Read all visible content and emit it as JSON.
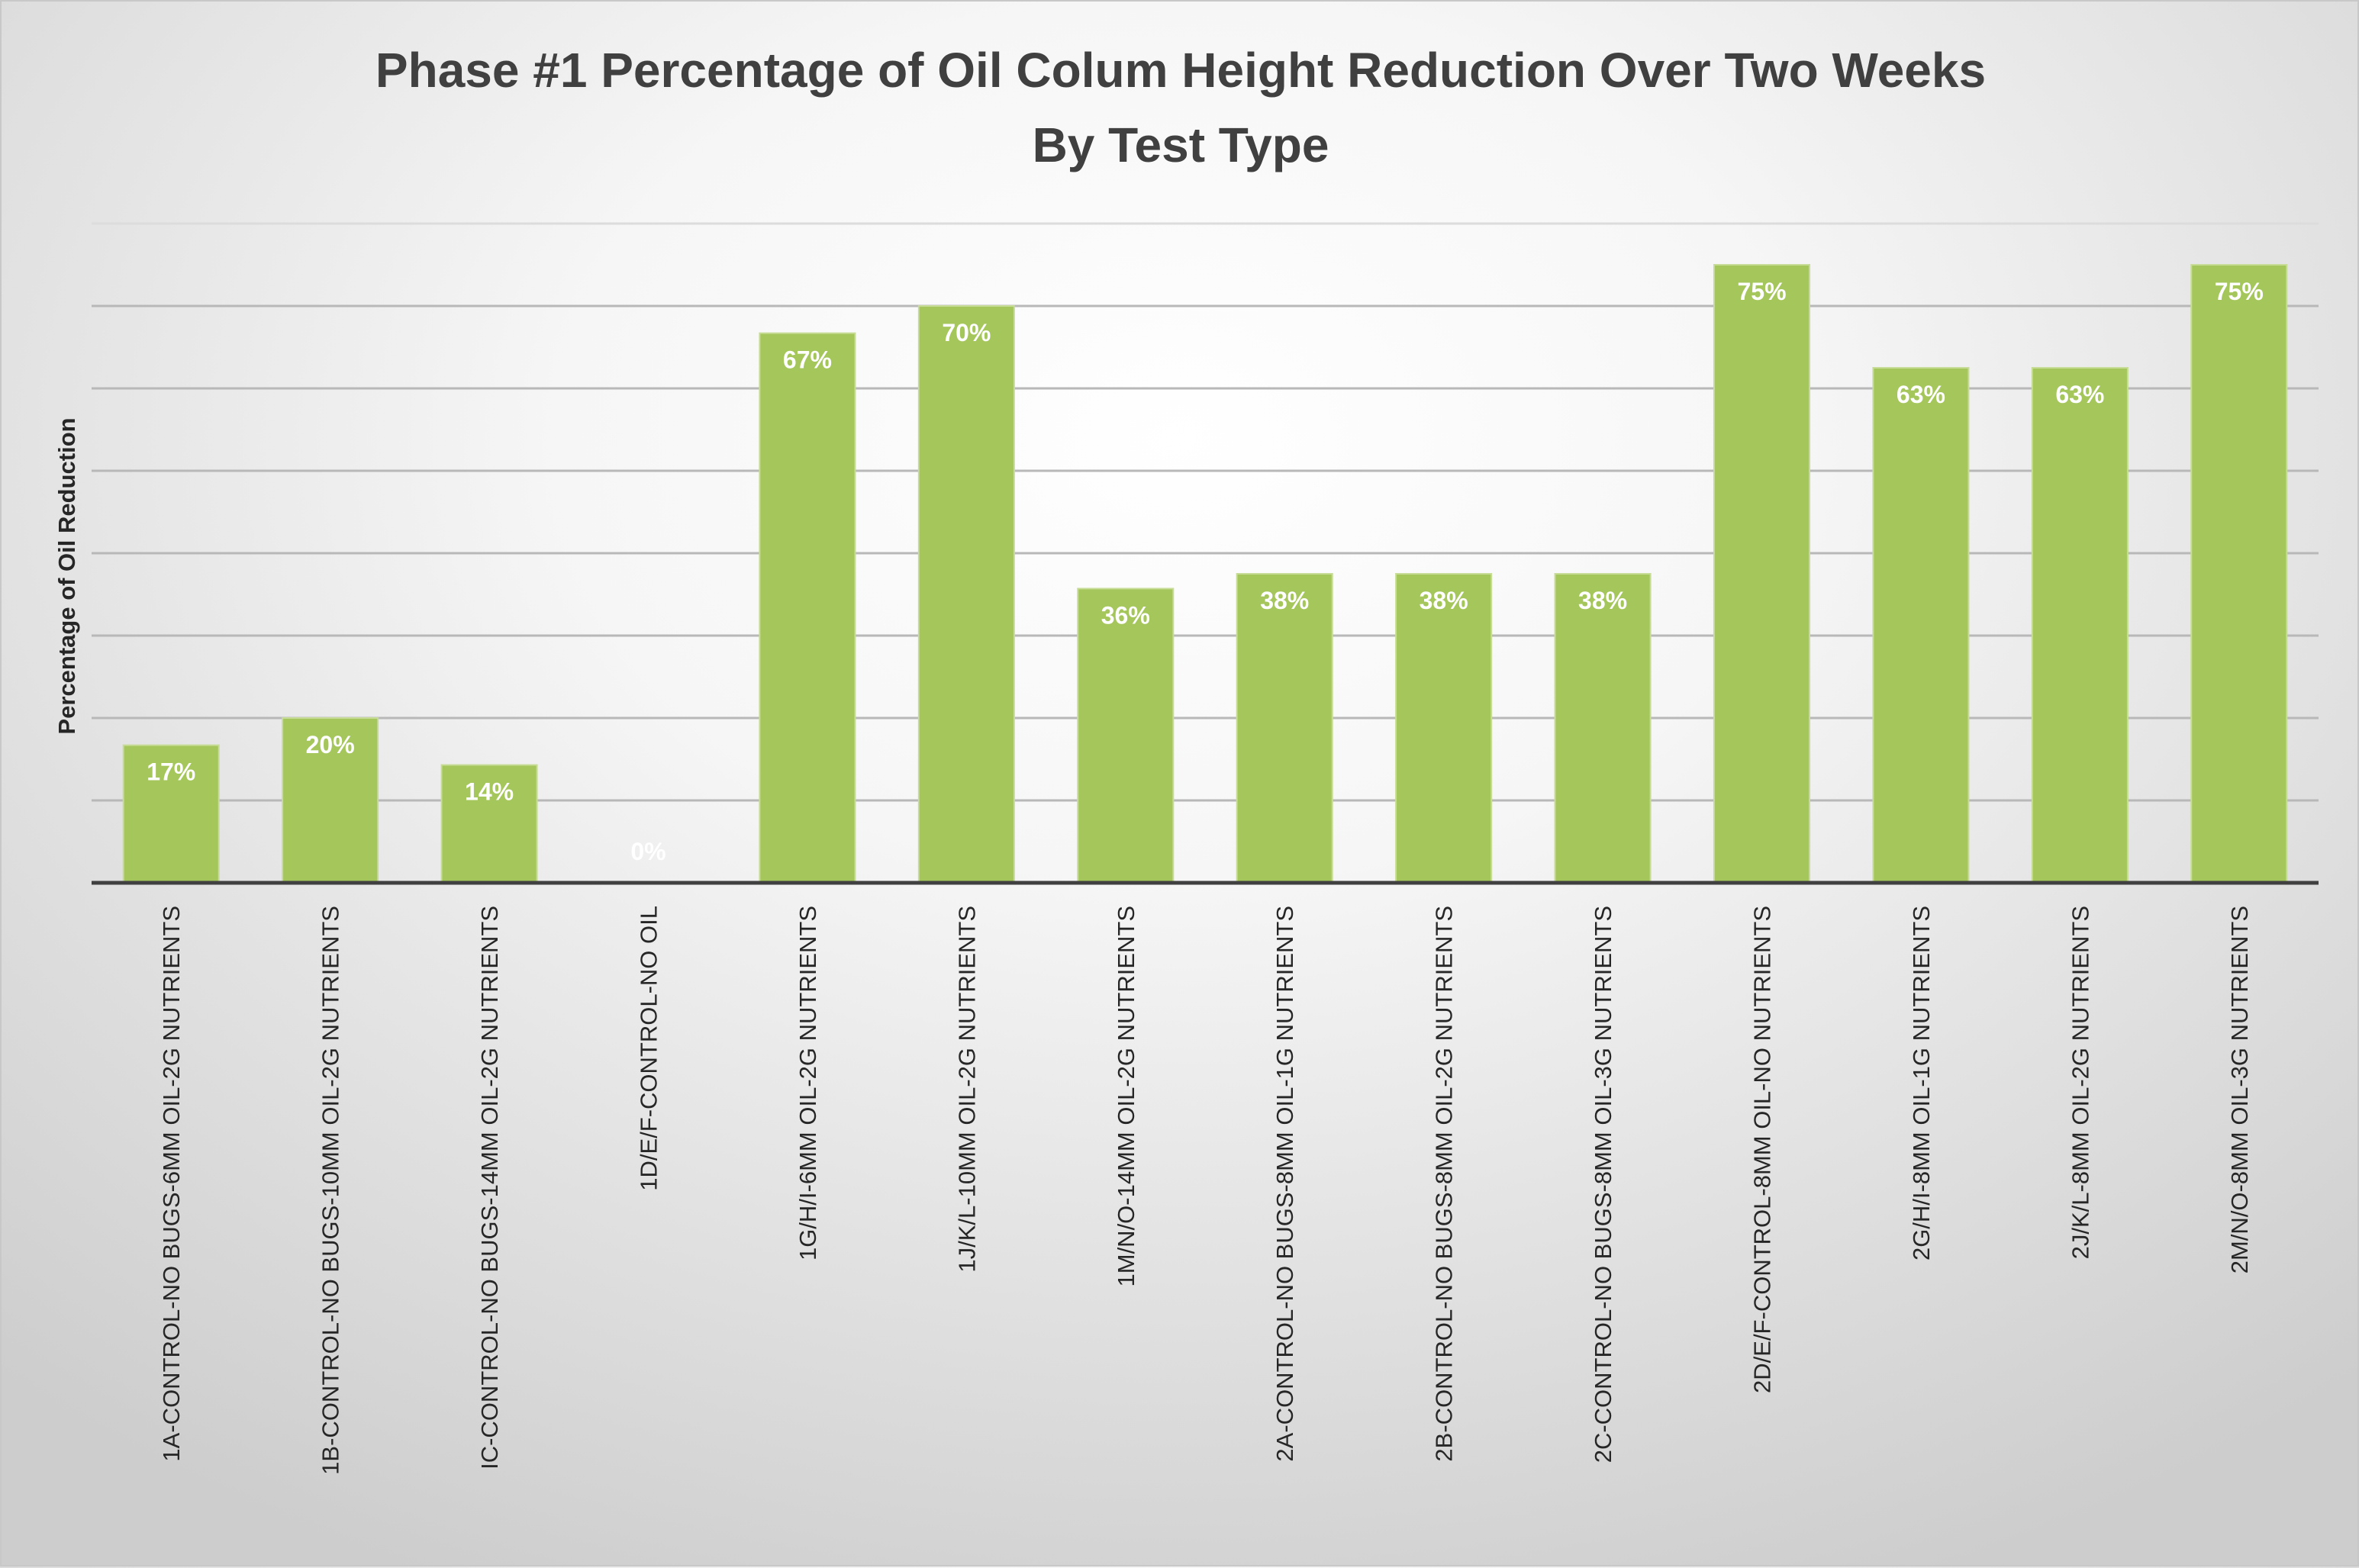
{
  "chart_data": {
    "type": "bar",
    "title": [
      "Phase #1 Percentage of Oil Colum Height Reduction Over Two Weeks",
      "By Test Type"
    ],
    "xlabel": "",
    "ylabel": "Percentage of Oil Reduction",
    "ylim": [
      0,
      80
    ],
    "grid": true,
    "legend": "none",
    "bar_color": "#a5c65a",
    "categories": [
      "1A-CONTROL-NO BUGS-6MM OIL-2G NUTRIENTS",
      "1B-CONTROL-NO BUGS-10MM OIL-2G NUTRIENTS",
      "IC-CONTROL-NO BUGS-14MM OIL-2G NUTRIENTS",
      "1D/E/F-CONTROL-NO OIL",
      "1G/H/I-6MM OIL-2G NUTRIENTS",
      "1J/K/L-10MM OIL-2G NUTRIENTS",
      "1M/N/O-14MM OIL-2G NUTRIENTS",
      "2A-CONTROL-NO BUGS-8MM OIL-1G NUTRIENTS",
      "2B-CONTROL-NO BUGS-8MM OIL-2G NUTRIENTS",
      "2C-CONTROL-NO BUGS-8MM OIL-3G NUTRIENTS",
      "2D/E/F-CONTROL-8MM OIL-NO NUTRIENTS",
      "2G/H/I-8MM OIL-1G NUTRIENTS",
      "2J/K/L-8MM OIL-2G NUTRIENTS",
      "2M/N/O-8MM OIL-3G NUTRIENTS"
    ],
    "values": [
      16.7,
      20,
      14.3,
      0,
      66.7,
      70,
      35.7,
      37.5,
      37.5,
      37.5,
      75,
      62.5,
      62.5,
      75
    ],
    "data_labels": [
      "17%",
      "20%",
      "14%",
      "0%",
      "67%",
      "70%",
      "36%",
      "38%",
      "38%",
      "38%",
      "75%",
      "63%",
      "63%",
      "75%"
    ]
  }
}
